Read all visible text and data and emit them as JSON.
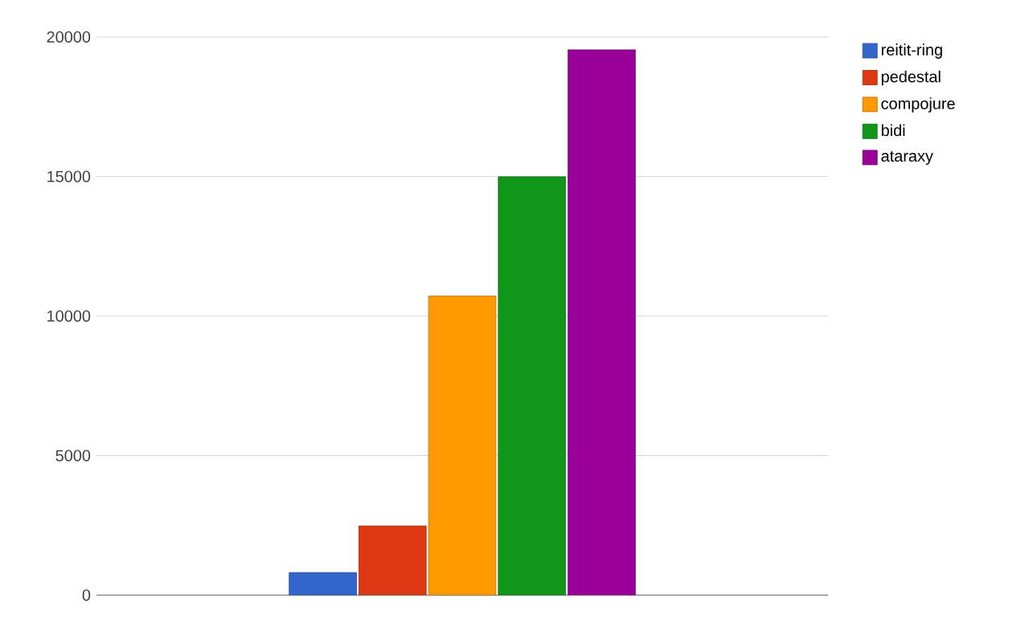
{
  "chart_data": {
    "type": "bar",
    "categories": [
      null
    ],
    "series": [
      {
        "name": "reitit-ring",
        "color": "#3366cc",
        "values": [
          810
        ]
      },
      {
        "name": "pedestal",
        "color": "#dc3912",
        "values": [
          2480
        ]
      },
      {
        "name": "compojure",
        "color": "#ff9900",
        "values": [
          10720
        ]
      },
      {
        "name": "bidi",
        "color": "#109618",
        "values": [
          14990
        ]
      },
      {
        "name": "ataraxy",
        "color": "#990099",
        "values": [
          19540
        ]
      }
    ],
    "ylim": [
      0,
      20000
    ],
    "yticks": [
      0,
      5000,
      10000,
      15000,
      20000
    ],
    "grid": "y",
    "legend": "top right"
  }
}
